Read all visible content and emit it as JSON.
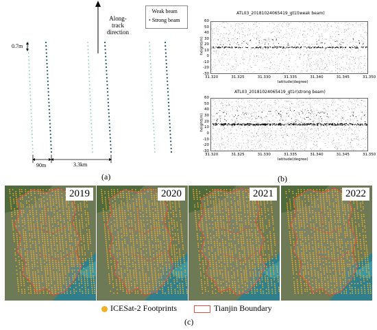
{
  "panel_a": {
    "legend": {
      "weak_label": "Weak beam",
      "strong_label": "Strong beam"
    },
    "direction_label_lines": [
      "Along-",
      "track",
      "direction"
    ],
    "dim_footprint": "0.7m",
    "dim_pair": "90m",
    "dim_track": "3.3km",
    "letter": "(a)",
    "colors": {
      "weak": "#7fc9c4",
      "strong": "#1f4f5f"
    }
  },
  "panel_b": {
    "letter": "(b)",
    "charts": [
      {
        "title": "ATL03_20181024065419_gt1l(weak beam)",
        "ylabel": "height(m)",
        "xlabel": "latitude(degree)",
        "xticks": [
          "31.320",
          "31.325",
          "31.330",
          "31.335",
          "31.340",
          "31.345",
          "31.350"
        ],
        "yticks": [
          "60",
          "50",
          "40",
          "30",
          "20",
          "10",
          "0",
          "-10",
          "-20",
          "-30"
        ]
      },
      {
        "title": "ATL03_20181024065419_gt1r(strong beam)",
        "ylabel": "height(m)",
        "xlabel": "latitude(degree)",
        "xticks": [
          "31.320",
          "31.325",
          "31.330",
          "31.335",
          "31.340",
          "31.345",
          "31.350"
        ],
        "yticks": [
          "60",
          "50",
          "40",
          "30",
          "20",
          "10",
          "0",
          "-10",
          "-20",
          "-30"
        ]
      }
    ]
  },
  "panel_c": {
    "years": [
      "2019",
      "2020",
      "2021",
      "2022"
    ],
    "legend": {
      "footprints": "ICESat-2 Footprints",
      "boundary": "Tianjin Boundary"
    },
    "letter": "(c)",
    "colors": {
      "footprint": "#f2b02a",
      "boundary": "#e0503c",
      "sea": "#2f7f8c"
    }
  }
}
